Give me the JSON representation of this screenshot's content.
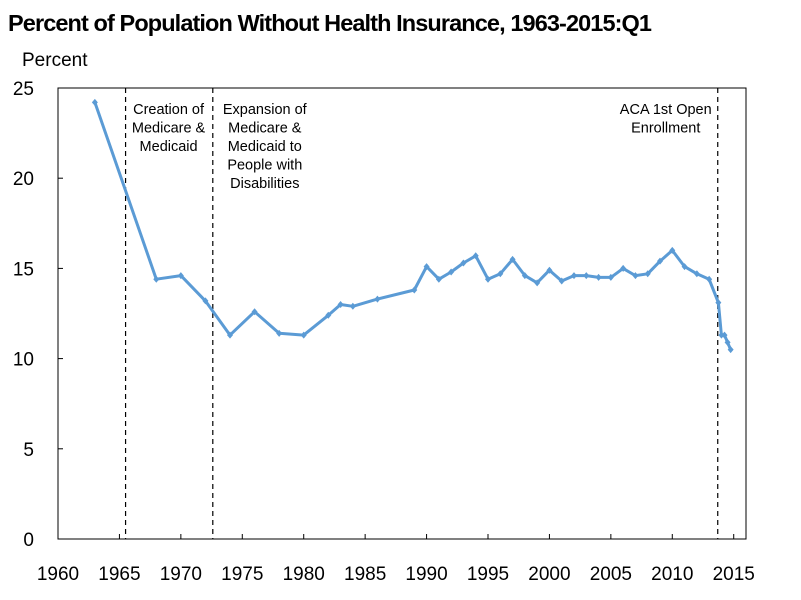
{
  "chart_data": {
    "type": "line",
    "title": "Percent of Population Without Health Insurance, 1963-2015:Q1",
    "ylabel": "Percent",
    "xlabel": "",
    "xlim": [
      1960,
      2016
    ],
    "ylim": [
      0,
      25
    ],
    "x_ticks": [
      "1960",
      "1965",
      "1970",
      "1975",
      "1980",
      "1985",
      "1990",
      "1995",
      "2000",
      "2005",
      "2010",
      "2015"
    ],
    "y_ticks": [
      "0",
      "5",
      "10",
      "15",
      "20",
      "25"
    ],
    "grid": false,
    "color": "#5b9bd5",
    "series": [
      {
        "x": [
          1963,
          1968,
          1970,
          1972,
          1974,
          1976,
          1978,
          1980,
          1982,
          1983,
          1984,
          1986,
          1989,
          1990,
          1991,
          1992,
          1993,
          1994,
          1995,
          1996,
          1997,
          1998,
          1999,
          2000,
          2001,
          2002,
          2003,
          2004,
          2005,
          2006,
          2007,
          2008,
          2009,
          2010,
          2011,
          2012,
          2013,
          2013.75,
          2014,
          2014.25,
          2014.5,
          2014.75
        ],
        "values": [
          24.2,
          14.4,
          14.6,
          13.2,
          11.3,
          12.6,
          11.4,
          11.3,
          12.4,
          13.0,
          12.9,
          13.3,
          13.8,
          15.1,
          14.4,
          14.8,
          15.3,
          15.7,
          14.4,
          14.7,
          15.5,
          14.6,
          14.2,
          14.9,
          14.3,
          14.6,
          14.6,
          14.5,
          14.5,
          15.0,
          14.6,
          14.7,
          15.4,
          16.0,
          15.1,
          14.7,
          14.4,
          13.1,
          11.3,
          11.3,
          10.9,
          10.5
        ]
      }
    ],
    "annotations": [
      {
        "x": 1965.5,
        "lines": [
          "Creation of",
          "Medicare &",
          "Medicaid"
        ]
      },
      {
        "x": 1972.6,
        "lines": [
          "Expansion of",
          "Medicare &",
          "Medicaid to",
          "People with",
          "Disabilities"
        ]
      },
      {
        "x": 2013.7,
        "lines": [
          "ACA 1st Open",
          "Enrollment"
        ]
      }
    ]
  }
}
